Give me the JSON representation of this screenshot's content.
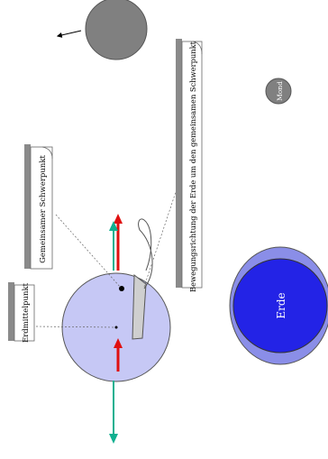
{
  "labels": {
    "erdmittelpunkt": "Erdmittelpunkt",
    "schwerpunkt": "Gemeinsamer Schwerpunkt",
    "bewegung": "Bewegungsrichtung der Erde um den gemeinsamen Schwerpunkt",
    "mond": "Mond",
    "erde": "Erde"
  },
  "colors": {
    "earth_fill": "#c6c8f5",
    "earth_blue": "#2323e6",
    "earth_bulge": "#8a8ee8",
    "moon_fill": "#808080",
    "red_arrow": "#e01010",
    "teal_arrow": "#10b090",
    "label_shadow": "#8a8a8a"
  }
}
